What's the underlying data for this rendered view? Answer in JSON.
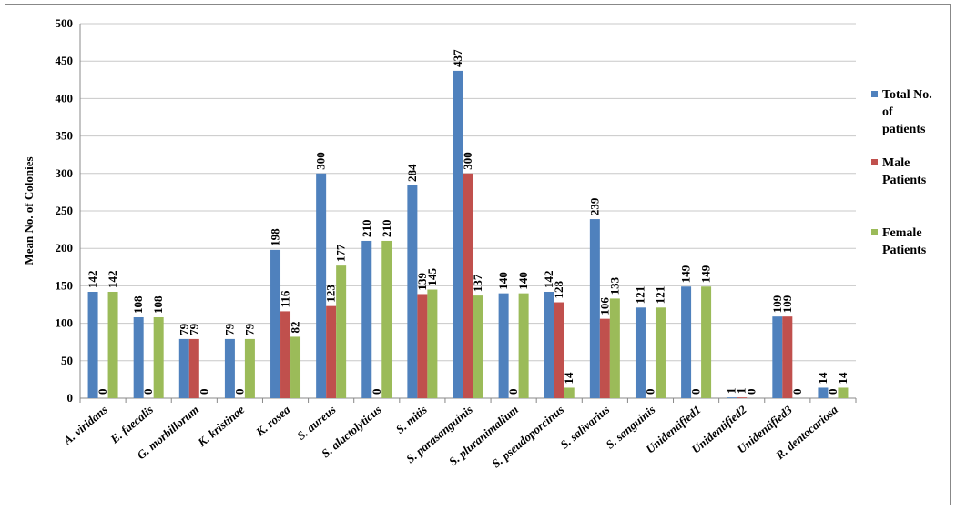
{
  "chart_data": {
    "type": "bar",
    "title": "",
    "xlabel": "",
    "ylabel": "Mean No. of Colonies",
    "ylim": [
      0,
      500
    ],
    "yticks": [
      0,
      50,
      100,
      150,
      200,
      250,
      300,
      350,
      400,
      450,
      500
    ],
    "grid": true,
    "legend_position": "right",
    "categories": [
      "A. viridans",
      "E. faecalis",
      "G. morbillorum",
      "K. kristinae",
      "K. rosea",
      "S. aureus",
      "S. alactolyticus",
      "S. mitis",
      "S. parasanguinis",
      "S. pluranimalium",
      "S. pseudoporcinus",
      "S. salivarius",
      "S. sanguinis",
      "Unidentified1",
      "Unidentified2",
      "Unidentified3",
      "R. dentocariosa"
    ],
    "series": [
      {
        "name": "Total No. of patients",
        "legend_lines": [
          "Total No.",
          "of",
          "patients"
        ],
        "color": "#4f81bd",
        "values": [
          142,
          108,
          79,
          79,
          198,
          300,
          210,
          284,
          437,
          140,
          142,
          239,
          121,
          149,
          1,
          109,
          14
        ]
      },
      {
        "name": "Male Patients",
        "legend_lines": [
          "Male",
          "Patients"
        ],
        "color": "#c0504d",
        "values": [
          0,
          0,
          79,
          0,
          116,
          123,
          0,
          139,
          300,
          0,
          128,
          106,
          0,
          0,
          1,
          109,
          0
        ]
      },
      {
        "name": "Female Patients",
        "legend_lines": [
          "Female",
          "Patients"
        ],
        "color": "#9bbb59",
        "values": [
          142,
          108,
          0,
          79,
          82,
          177,
          210,
          145,
          137,
          140,
          14,
          133,
          121,
          149,
          0,
          0,
          14
        ]
      }
    ]
  }
}
